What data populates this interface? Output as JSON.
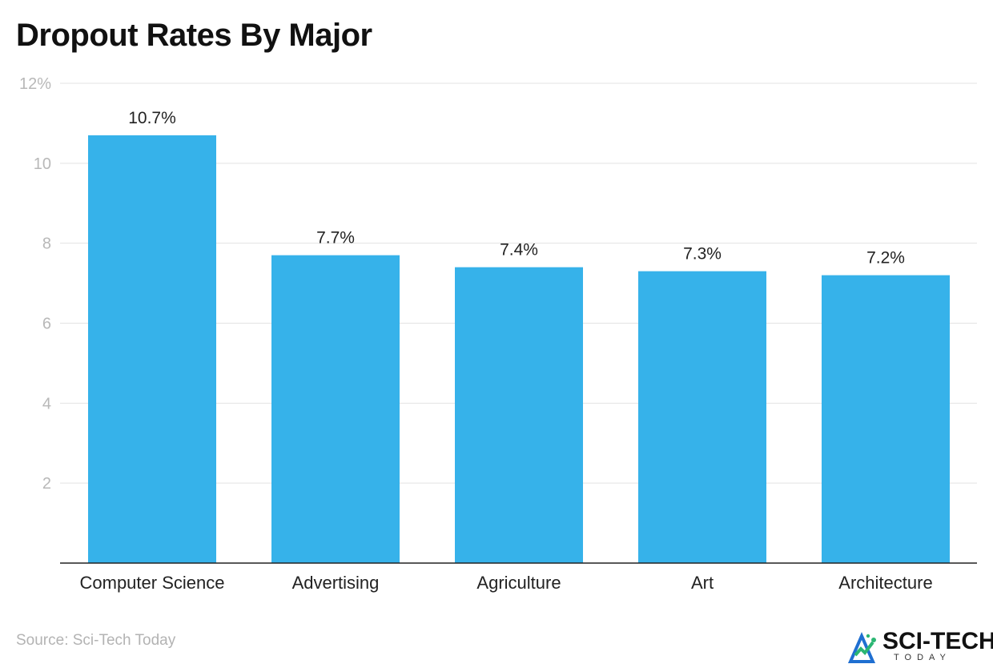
{
  "chart_data": {
    "type": "bar",
    "title": "Dropout Rates By Major",
    "categories": [
      "Computer Science",
      "Advertising",
      "Agriculture",
      "Art",
      "Architecture"
    ],
    "values": [
      10.7,
      7.7,
      7.4,
      7.3,
      7.2
    ],
    "data_labels": [
      "10.7%",
      "7.7%",
      "7.4%",
      "7.3%",
      "7.2%"
    ],
    "ylim": [
      0,
      12
    ],
    "yticks": [
      2,
      4,
      6,
      8,
      10,
      12
    ],
    "ytick_labels": [
      "2",
      "4",
      "6",
      "8",
      "10",
      "12%"
    ],
    "xlabel": "",
    "ylabel": "",
    "grid": true,
    "bar_color": "#36b2ea"
  },
  "source": "Source: Sci-Tech Today",
  "logo": {
    "text": "SCI-TECH",
    "subtext": "TODAY"
  }
}
